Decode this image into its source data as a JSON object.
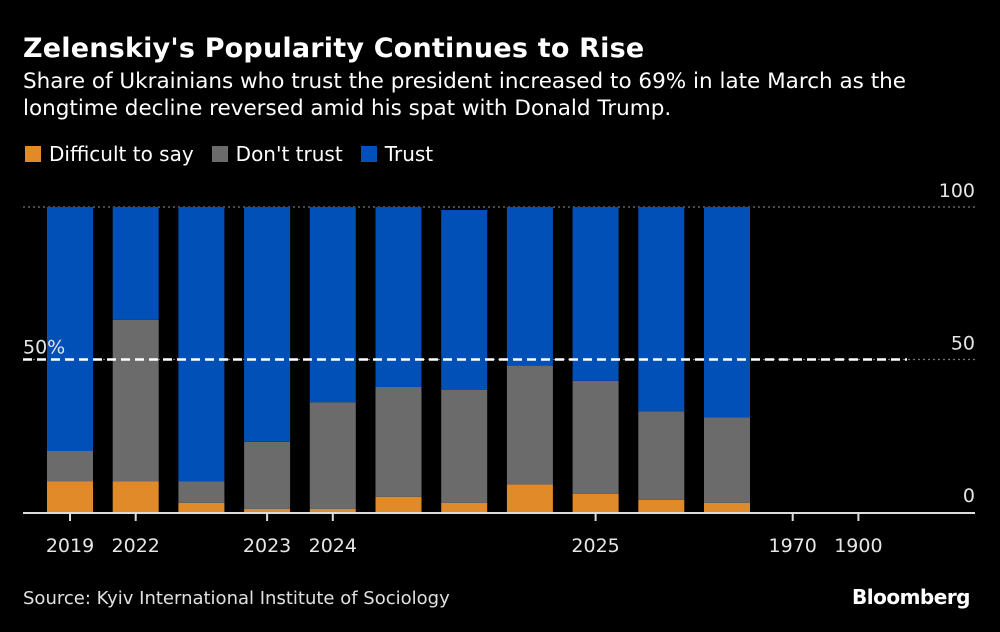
{
  "header": {
    "title": "Zelenskiy's Popularity Continues to Rise",
    "subtitle": "Share of Ukrainians who trust the president increased to 69% in late March as the longtime decline reversed amid his spat with Donald Trump."
  },
  "footer": {
    "source": "Source: Kyiv International Institute of Sociology",
    "brand": "Bloomberg"
  },
  "chart_data": {
    "type": "bar",
    "stacked": true,
    "title": "Zelenskiy's Popularity Continues to Rise",
    "xlabel": "",
    "ylabel": "",
    "ylim": [
      0,
      100
    ],
    "yticks": [
      0,
      50,
      100
    ],
    "y_axis_position": "right",
    "grid": true,
    "legend_position": "top-left",
    "reference_line": {
      "value": 50,
      "label": "50%"
    },
    "x_tick_labels": [
      {
        "label": "2019",
        "at_bar": 0
      },
      {
        "label": "2022",
        "at_bar": 1
      },
      {
        "label": "2023",
        "at_bar": 3
      },
      {
        "label": "2024",
        "at_bar": 4
      },
      {
        "label": "2025",
        "at_bar": 8
      },
      {
        "label": "1970",
        "at_bar": 11
      },
      {
        "label": "1900",
        "at_bar": 12
      }
    ],
    "categories": [
      "b1",
      "b2",
      "b3",
      "b4",
      "b5",
      "b6",
      "b7",
      "b8",
      "b9",
      "b10",
      "b11"
    ],
    "series": [
      {
        "name": "Difficult to say",
        "color": "#E08A2A",
        "values": [
          10,
          10,
          3,
          1,
          1,
          5,
          3,
          9,
          6,
          4,
          3
        ]
      },
      {
        "name": "Don't trust",
        "color": "#6B6B6B",
        "values": [
          10,
          53,
          7,
          22,
          35,
          36,
          37,
          39,
          37,
          29,
          28
        ]
      },
      {
        "name": "Trust",
        "color": "#0050B8",
        "values": [
          80,
          37,
          90,
          77,
          64,
          59,
          59,
          52,
          57,
          67,
          69
        ]
      }
    ]
  }
}
